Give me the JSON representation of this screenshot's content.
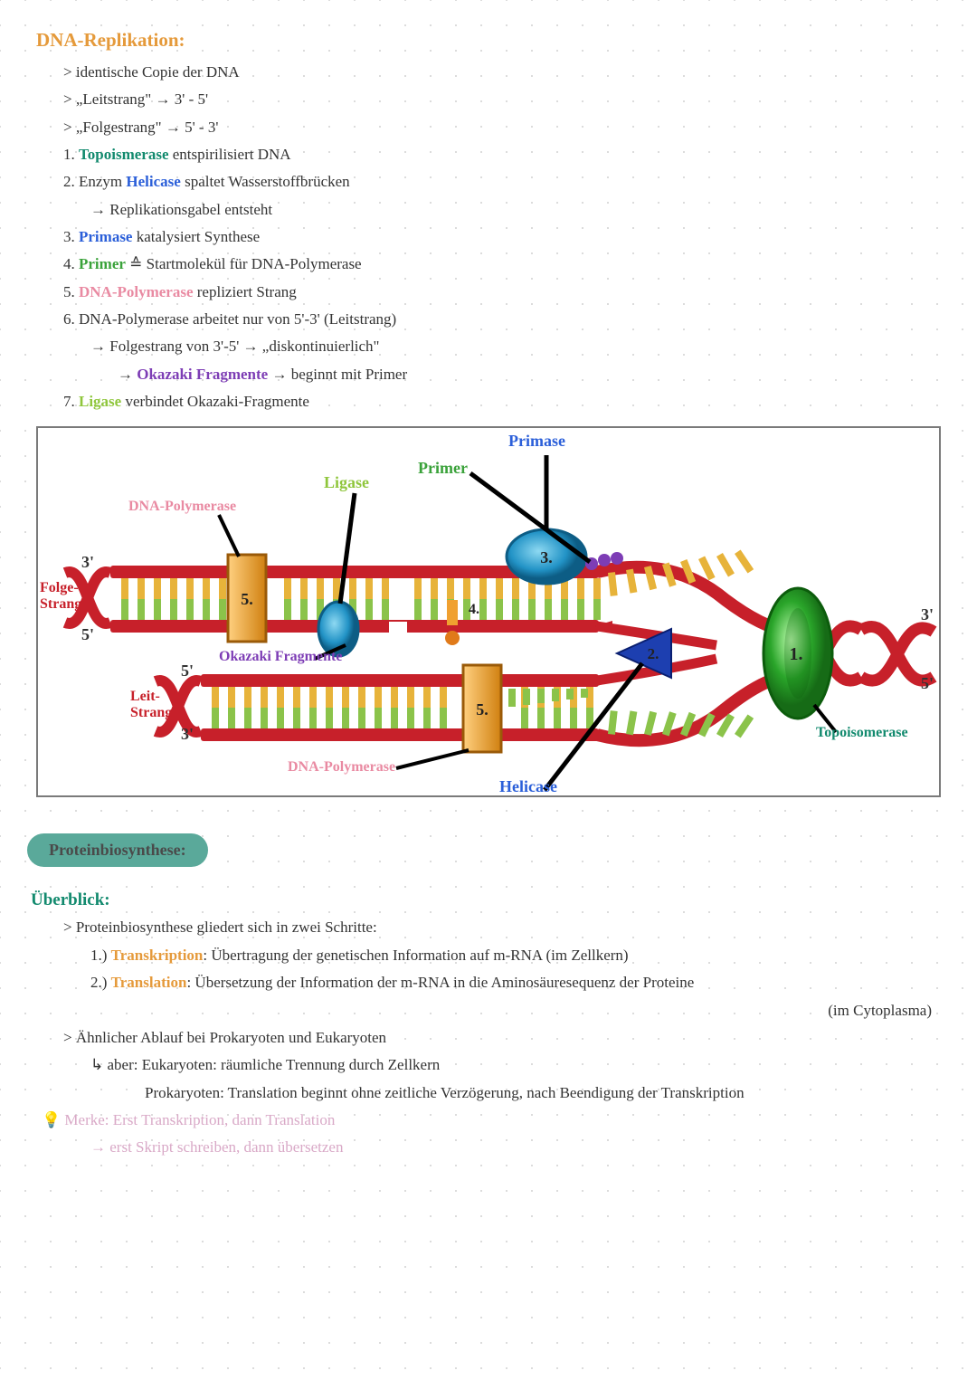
{
  "colors": {
    "orange": "#e59a3b",
    "teal": "#128a6e",
    "green": "#3aa23a",
    "blue": "#2b5fd9",
    "pink": "#e98aa2",
    "purple": "#7d3db5",
    "lime": "#8fc63c",
    "handwriting": "#4a4a4a",
    "pill": "#5aa99a",
    "dnaRed": "#c7202a",
    "dnaYellow": "#e7b33a",
    "dnaGreen": "#8bc34a",
    "primaseBlue": "#2293c6",
    "helicaseBlue": "#1d3fb0",
    "polymeraseOrange": "#f0a030",
    "topoGreen1": "#2aa52a",
    "topoGreen2": "#8df08d",
    "ligaseBlue": "#35a9c9"
  },
  "section1": {
    "title": "DNA-Replikation:",
    "bullets": [
      "identische Copie der DNA",
      "„Leitstrang\" → 3' - 5'",
      "„Folgestrang\" → 5' - 3'"
    ],
    "steps": [
      {
        "n": "1.",
        "kw": "Topoismerase",
        "kwColor": "teal",
        "rest": " entspirilisiert DNA"
      },
      {
        "n": "2.",
        "pre": " Enzym ",
        "kw": "Helicase",
        "kwColor": "blue",
        "rest": " spaltet Wasserstoffbrücken"
      },
      {
        "sub": "→ Replikationsgabel entsteht"
      },
      {
        "n": "3.",
        "kw": "Primase",
        "kwColor": "blue",
        "rest": " katalysiert Synthese"
      },
      {
        "n": "4.",
        "kw": "Primer",
        "kwColor": "green",
        "rest": " ≙ Startmolekül für DNA-Polymerase"
      },
      {
        "n": "5.",
        "kw": "DNA-Polymerase",
        "kwColor": "pink",
        "rest": " repliziert Strang"
      },
      {
        "n": "6.",
        "rest": " DNA-Polymerase arbeitet nur von 5'-3' (Leitstrang)"
      },
      {
        "sub": "→ Folgestrang von 3'-5' → „diskontinuierlich\""
      },
      {
        "sub2pre": "→ ",
        "sub2kw": "Okazaki Fragmente",
        "sub2kwColor": "purple",
        "sub2rest": " → beginnt mit Primer"
      },
      {
        "n": "7.",
        "kw": "Ligase",
        "kwColor": "lime",
        "rest": " verbindet Okazaki-Fragmente"
      }
    ]
  },
  "diagram": {
    "labels": {
      "primase": "Primase",
      "primer": "Primer",
      "ligase": "Ligase",
      "dnapoly": "DNA-Polymerase",
      "okazaki": "Okazaki Fragmente",
      "helicase": "Helicase",
      "topoisomerase": "Topoisomerase",
      "folge": "Folge-\nStrang",
      "leit": "Leit-\nStrang",
      "p3": "3'",
      "p5": "5'",
      "n1": "1.",
      "n2": "2.",
      "n3": "3.",
      "n4": "4.",
      "n5": "5."
    }
  },
  "section2": {
    "pill": "Proteinbiosynthese:",
    "subtitle": "Überblick:",
    "line1": "Proteinbiosynthese gliedert sich in zwei Schritte:",
    "step1": {
      "n": "1.)",
      "kw": "Transkription",
      "rest": ": Übertragung der genetischen Information auf m-RNA (im Zellkern)"
    },
    "step2": {
      "n": "2.)",
      "kw": "Translation",
      "rest": ": Übersetzung der Information der m-RNA in die Aminosäuresequenz der Proteine"
    },
    "step2b": "(im Cytoplasma)",
    "line2": "Ähnlicher Ablauf bei Prokaryoten und Eukaryoten",
    "line3": "↳ aber: Eukaryoten: räumliche Trennung durch Zellkern",
    "line4": "Prokaryoten: Translation beginnt ohne zeitliche Verzögerung, nach Beendigung der Transkription",
    "merke1": "💡 Merke: Erst Transkription, dann Translation",
    "merke2": "→ erst Skript schreiben, dann übersetzen"
  }
}
